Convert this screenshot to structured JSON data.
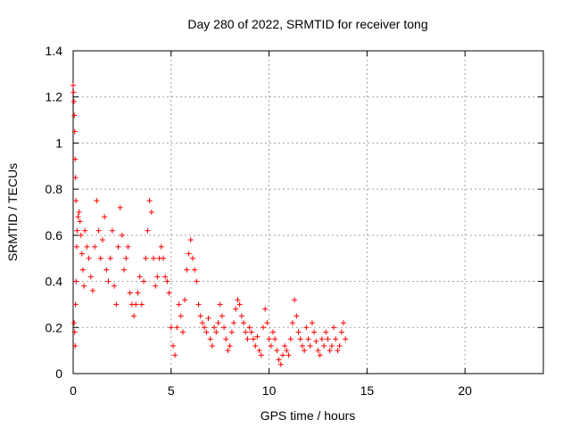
{
  "chart_data": {
    "type": "scatter",
    "title": "Day 280 of 2022, SRMTID for receiver tong",
    "xlabel": "GPS time / hours",
    "ylabel": "SRMTID / TECUs",
    "xlim": [
      0,
      24
    ],
    "ylim": [
      0,
      1.4
    ],
    "xticks": [
      0,
      5,
      10,
      15,
      20
    ],
    "xtick_labels": [
      "0",
      "5",
      "10",
      "15",
      "20"
    ],
    "yticks": [
      0,
      0.2,
      0.4,
      0.6,
      0.8,
      1.0,
      1.2,
      1.4
    ],
    "ytick_labels": [
      "0",
      "0.2",
      "0.4",
      "0.6",
      "0.8",
      "1",
      "1.2",
      "1.4"
    ],
    "grid": true,
    "marker": "plus",
    "color": "#ff0000",
    "series": [
      {
        "name": "SRMTID",
        "points": [
          [
            0.0,
            1.25
          ],
          [
            0.02,
            1.22
          ],
          [
            0.04,
            1.18
          ],
          [
            0.06,
            1.12
          ],
          [
            0.08,
            1.05
          ],
          [
            0.1,
            0.93
          ],
          [
            0.12,
            0.85
          ],
          [
            0.14,
            0.75
          ],
          [
            0.05,
            0.22
          ],
          [
            0.08,
            0.18
          ],
          [
            0.1,
            0.12
          ],
          [
            0.12,
            0.3
          ],
          [
            0.15,
            0.4
          ],
          [
            0.18,
            0.55
          ],
          [
            0.2,
            0.62
          ],
          [
            0.25,
            0.68
          ],
          [
            0.3,
            0.7
          ],
          [
            0.35,
            0.66
          ],
          [
            0.4,
            0.6
          ],
          [
            0.45,
            0.52
          ],
          [
            0.5,
            0.45
          ],
          [
            0.55,
            0.38
          ],
          [
            0.6,
            0.62
          ],
          [
            0.7,
            0.55
          ],
          [
            0.8,
            0.5
          ],
          [
            0.9,
            0.42
          ],
          [
            1.0,
            0.36
          ],
          [
            1.1,
            0.55
          ],
          [
            1.2,
            0.75
          ],
          [
            1.3,
            0.62
          ],
          [
            1.4,
            0.5
          ],
          [
            1.5,
            0.58
          ],
          [
            1.6,
            0.68
          ],
          [
            1.7,
            0.45
          ],
          [
            1.8,
            0.4
          ],
          [
            1.9,
            0.5
          ],
          [
            2.0,
            0.62
          ],
          [
            2.1,
            0.38
          ],
          [
            2.2,
            0.3
          ],
          [
            2.3,
            0.55
          ],
          [
            2.4,
            0.72
          ],
          [
            2.5,
            0.6
          ],
          [
            2.6,
            0.45
          ],
          [
            2.7,
            0.5
          ],
          [
            2.8,
            0.55
          ],
          [
            2.9,
            0.35
          ],
          [
            3.0,
            0.3
          ],
          [
            3.1,
            0.25
          ],
          [
            3.2,
            0.3
          ],
          [
            3.3,
            0.35
          ],
          [
            3.4,
            0.42
          ],
          [
            3.5,
            0.3
          ],
          [
            3.6,
            0.4
          ],
          [
            3.7,
            0.5
          ],
          [
            3.8,
            0.62
          ],
          [
            3.9,
            0.75
          ],
          [
            4.0,
            0.7
          ],
          [
            4.1,
            0.5
          ],
          [
            4.2,
            0.38
          ],
          [
            4.3,
            0.42
          ],
          [
            4.4,
            0.5
          ],
          [
            4.5,
            0.55
          ],
          [
            4.6,
            0.5
          ],
          [
            4.7,
            0.42
          ],
          [
            4.8,
            0.4
          ],
          [
            4.9,
            0.35
          ],
          [
            5.0,
            0.2
          ],
          [
            5.1,
            0.12
          ],
          [
            5.2,
            0.08
          ],
          [
            5.3,
            0.2
          ],
          [
            5.4,
            0.3
          ],
          [
            5.5,
            0.25
          ],
          [
            5.6,
            0.18
          ],
          [
            5.7,
            0.32
          ],
          [
            5.8,
            0.45
          ],
          [
            5.9,
            0.52
          ],
          [
            6.0,
            0.58
          ],
          [
            6.1,
            0.5
          ],
          [
            6.2,
            0.45
          ],
          [
            6.3,
            0.4
          ],
          [
            6.4,
            0.3
          ],
          [
            6.5,
            0.25
          ],
          [
            6.6,
            0.22
          ],
          [
            6.7,
            0.2
          ],
          [
            6.8,
            0.18
          ],
          [
            6.9,
            0.24
          ],
          [
            7.0,
            0.15
          ],
          [
            7.1,
            0.12
          ],
          [
            7.2,
            0.2
          ],
          [
            7.3,
            0.18
          ],
          [
            7.4,
            0.22
          ],
          [
            7.5,
            0.3
          ],
          [
            7.6,
            0.25
          ],
          [
            7.7,
            0.2
          ],
          [
            7.8,
            0.15
          ],
          [
            7.9,
            0.1
          ],
          [
            8.0,
            0.12
          ],
          [
            8.1,
            0.18
          ],
          [
            8.2,
            0.22
          ],
          [
            8.3,
            0.28
          ],
          [
            8.4,
            0.32
          ],
          [
            8.5,
            0.3
          ],
          [
            8.6,
            0.25
          ],
          [
            8.7,
            0.22
          ],
          [
            8.8,
            0.18
          ],
          [
            8.9,
            0.15
          ],
          [
            9.0,
            0.2
          ],
          [
            9.1,
            0.18
          ],
          [
            9.2,
            0.15
          ],
          [
            9.3,
            0.12
          ],
          [
            9.4,
            0.16
          ],
          [
            9.5,
            0.1
          ],
          [
            9.6,
            0.08
          ],
          [
            9.7,
            0.2
          ],
          [
            9.8,
            0.28
          ],
          [
            9.9,
            0.22
          ],
          [
            10.0,
            0.15
          ],
          [
            10.1,
            0.12
          ],
          [
            10.2,
            0.18
          ],
          [
            10.3,
            0.15
          ],
          [
            10.4,
            0.1
          ],
          [
            10.5,
            0.06
          ],
          [
            10.6,
            0.04
          ],
          [
            10.7,
            0.08
          ],
          [
            10.8,
            0.12
          ],
          [
            10.9,
            0.1
          ],
          [
            11.0,
            0.08
          ],
          [
            11.1,
            0.15
          ],
          [
            11.2,
            0.22
          ],
          [
            11.3,
            0.32
          ],
          [
            11.4,
            0.25
          ],
          [
            11.5,
            0.18
          ],
          [
            11.6,
            0.15
          ],
          [
            11.7,
            0.12
          ],
          [
            11.8,
            0.1
          ],
          [
            11.9,
            0.2
          ],
          [
            12.0,
            0.15
          ],
          [
            12.1,
            0.12
          ],
          [
            12.2,
            0.22
          ],
          [
            12.3,
            0.18
          ],
          [
            12.4,
            0.14
          ],
          [
            12.5,
            0.1
          ],
          [
            12.6,
            0.08
          ],
          [
            12.7,
            0.15
          ],
          [
            12.8,
            0.12
          ],
          [
            12.9,
            0.18
          ],
          [
            13.0,
            0.15
          ],
          [
            13.1,
            0.1
          ],
          [
            13.2,
            0.12
          ],
          [
            13.3,
            0.2
          ],
          [
            13.4,
            0.15
          ],
          [
            13.5,
            0.1
          ],
          [
            13.6,
            0.12
          ],
          [
            13.7,
            0.18
          ],
          [
            13.8,
            0.22
          ],
          [
            13.9,
            0.15
          ]
        ]
      }
    ]
  }
}
